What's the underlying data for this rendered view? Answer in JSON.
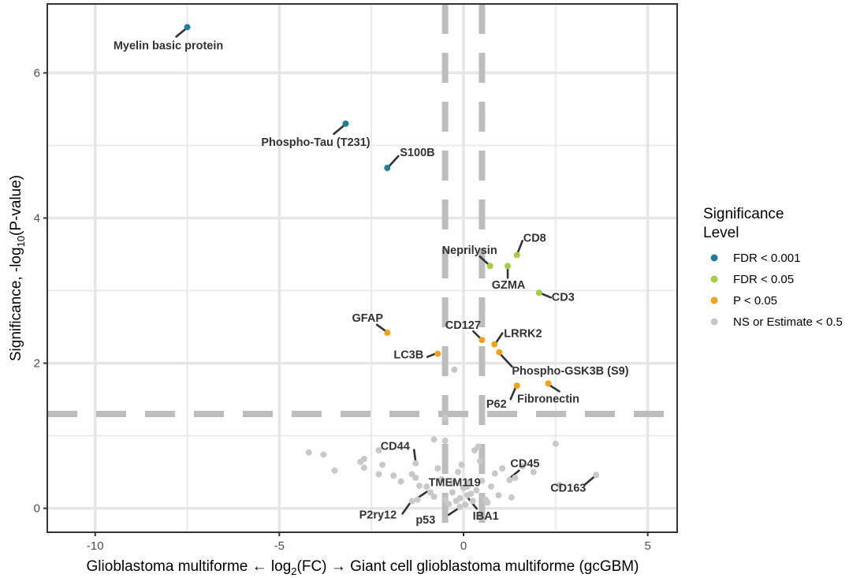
{
  "chart_data": {
    "type": "scatter",
    "xlabel_parts": [
      "Glioblastoma multiforme ← log",
      "2",
      "(FC) → Giant cell glioblastoma multiforme (gcGBM)"
    ],
    "ylabel_parts": [
      "Significance, -log",
      "10",
      "(P-value)"
    ],
    "xlim": [
      -11.3,
      5.8
    ],
    "ylim": [
      -0.33,
      6.95
    ],
    "x_ticks": [
      -10,
      -5,
      0,
      5
    ],
    "x_tick_labels": [
      "-10",
      "-5",
      "0",
      "5"
    ],
    "y_ticks": [
      0,
      2,
      4,
      6
    ],
    "y_tick_labels": [
      "0",
      "2",
      "4",
      "6"
    ],
    "grid": true,
    "threshold_lines": {
      "x": [
        -0.5,
        0.5
      ],
      "y": [
        1.3
      ]
    },
    "legend": {
      "position": "right",
      "title_lines": [
        "Significance",
        "Level"
      ],
      "entries": [
        {
          "label": "FDR < 0.001",
          "color": "#1f7f99"
        },
        {
          "label": "FDR < 0.05",
          "color": "#a2cf45"
        },
        {
          "label": "P < 0.05",
          "color": "#eea21e"
        },
        {
          "label": "NS or Estimate < 0.5",
          "color": "#c8c8c8"
        }
      ]
    },
    "colors": {
      "FDR < 0.001": "#1f7f99",
      "FDR < 0.05": "#a2cf45",
      "P < 0.05": "#eea21e",
      "NS or Estimate < 0.5": "#c8c8c8"
    },
    "labeled_points": [
      {
        "label": "Myelin basic protein",
        "x": -7.5,
        "y": 6.63,
        "level": "FDR < 0.001"
      },
      {
        "label": "Phospho-Tau (T231)",
        "x": -3.2,
        "y": 5.3,
        "level": "FDR < 0.001"
      },
      {
        "label": "S100B",
        "x": -2.07,
        "y": 4.69,
        "level": "FDR < 0.001"
      },
      {
        "label": "CD8",
        "x": 1.45,
        "y": 3.49,
        "level": "FDR < 0.05"
      },
      {
        "label": "Neprilysin",
        "x": 0.72,
        "y": 3.34,
        "level": "FDR < 0.05"
      },
      {
        "label": "GZMA",
        "x": 1.2,
        "y": 3.34,
        "level": "FDR < 0.05"
      },
      {
        "label": "CD3",
        "x": 2.05,
        "y": 2.97,
        "level": "FDR < 0.05"
      },
      {
        "label": "GFAP",
        "x": -2.07,
        "y": 2.42,
        "level": "P < 0.05"
      },
      {
        "label": "CD127",
        "x": 0.5,
        "y": 2.32,
        "level": "P < 0.05"
      },
      {
        "label": "LRRK2",
        "x": 0.84,
        "y": 2.26,
        "level": "P < 0.05"
      },
      {
        "label": "LC3B",
        "x": -0.7,
        "y": 2.13,
        "level": "P < 0.05"
      },
      {
        "label": "Phospho-GSK3B (S9)",
        "x": 0.97,
        "y": 2.15,
        "level": "P < 0.05"
      },
      {
        "label": "P62",
        "x": 1.45,
        "y": 1.69,
        "level": "P < 0.05"
      },
      {
        "label": "Fibronectin",
        "x": 2.3,
        "y": 1.72,
        "level": "P < 0.05"
      },
      {
        "label": "CD44",
        "x": -1.3,
        "y": 0.62,
        "level": "NS or Estimate < 0.5"
      },
      {
        "label": "CD45",
        "x": 1.25,
        "y": 0.39,
        "level": "NS or Estimate < 0.5"
      },
      {
        "label": "TMEM119",
        "x": -1.25,
        "y": 0.12,
        "level": "NS or Estimate < 0.5"
      },
      {
        "label": "CD163",
        "x": 3.6,
        "y": 0.46,
        "level": "NS or Estimate < 0.5"
      },
      {
        "label": "P2ry12",
        "x": -1.4,
        "y": 0.1,
        "level": "NS or Estimate < 0.5"
      },
      {
        "label": "p53",
        "x": -0.1,
        "y": 0.02,
        "level": "NS or Estimate < 0.5"
      },
      {
        "label": "IBA1",
        "x": 0.1,
        "y": 0.18,
        "level": "NS or Estimate < 0.5"
      }
    ],
    "unlabeled_points": [
      {
        "x": -0.25,
        "y": 1.91
      },
      {
        "x": -0.5,
        "y": 1.25
      },
      {
        "x": -0.8,
        "y": 0.95
      },
      {
        "x": -0.5,
        "y": 0.93
      },
      {
        "x": 0.4,
        "y": 0.85
      },
      {
        "x": 2.5,
        "y": 0.89
      },
      {
        "x": -4.2,
        "y": 0.77
      },
      {
        "x": -3.8,
        "y": 0.74
      },
      {
        "x": -3.5,
        "y": 0.52
      },
      {
        "x": -2.7,
        "y": 0.68
      },
      {
        "x": -2.8,
        "y": 0.64
      },
      {
        "x": -2.7,
        "y": 0.56
      },
      {
        "x": -2.2,
        "y": 0.6
      },
      {
        "x": -2.3,
        "y": 0.47
      },
      {
        "x": -2.3,
        "y": 0.8
      },
      {
        "x": -1.9,
        "y": 0.45
      },
      {
        "x": -1.7,
        "y": 0.37
      },
      {
        "x": -1.4,
        "y": 0.47
      },
      {
        "x": -1.3,
        "y": 0.42
      },
      {
        "x": -1.2,
        "y": 0.31
      },
      {
        "x": -1.0,
        "y": 0.3
      },
      {
        "x": -0.9,
        "y": 0.22
      },
      {
        "x": -0.8,
        "y": 0.16
      },
      {
        "x": -0.6,
        "y": 0.4
      },
      {
        "x": -0.5,
        "y": 0.12
      },
      {
        "x": -0.4,
        "y": 0.06
      },
      {
        "x": -0.3,
        "y": 0.35
      },
      {
        "x": -0.2,
        "y": 0.1
      },
      {
        "x": -0.15,
        "y": 0.5
      },
      {
        "x": 0.0,
        "y": 0.28
      },
      {
        "x": 0.05,
        "y": 0.05
      },
      {
        "x": 0.15,
        "y": 0.36
      },
      {
        "x": 0.25,
        "y": 0.1
      },
      {
        "x": 0.35,
        "y": 0.25
      },
      {
        "x": 0.45,
        "y": 0.65
      },
      {
        "x": 0.5,
        "y": 0.38
      },
      {
        "x": 0.6,
        "y": 0.12
      },
      {
        "x": 0.75,
        "y": 0.3
      },
      {
        "x": 0.85,
        "y": 0.48
      },
      {
        "x": 0.95,
        "y": 0.18
      },
      {
        "x": 1.05,
        "y": 0.55
      },
      {
        "x": 1.3,
        "y": 0.15
      },
      {
        "x": 1.4,
        "y": 0.42
      },
      {
        "x": 1.6,
        "y": 0.58
      },
      {
        "x": 1.9,
        "y": 0.5
      },
      {
        "x": 2.6,
        "y": 0.32
      },
      {
        "x": -0.05,
        "y": 0.6
      },
      {
        "x": 0.3,
        "y": 0.8
      },
      {
        "x": -0.7,
        "y": 0.55
      },
      {
        "x": 0.65,
        "y": 0.08
      },
      {
        "x": -0.3,
        "y": 0.22
      },
      {
        "x": 0.2,
        "y": 0.2
      },
      {
        "x": -0.1,
        "y": 0.14
      },
      {
        "x": 0.1,
        "y": 0.3
      }
    ]
  }
}
